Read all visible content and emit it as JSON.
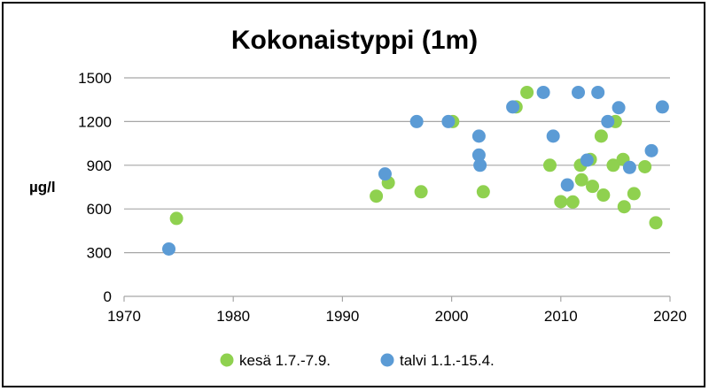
{
  "chart_data": {
    "type": "scatter",
    "title": "Kokonaistyppi (1m)",
    "ylabel": "µg/l",
    "xlabel": "",
    "xlim": [
      1970,
      2020
    ],
    "ylim": [
      0,
      1500
    ],
    "xticks": [
      1970,
      1980,
      1990,
      2000,
      2010,
      2020
    ],
    "yticks": [
      0,
      300,
      600,
      900,
      1200,
      1500
    ],
    "grid": "horizontal",
    "legend_position": "bottom",
    "series": [
      {
        "name": "kesä 1.7.-7.9.",
        "color": "#8fd14f",
        "points": [
          [
            1974.8,
            535
          ],
          [
            1993.1,
            688
          ],
          [
            1994.2,
            780
          ],
          [
            1997.2,
            718
          ],
          [
            2000.1,
            1200
          ],
          [
            2002.9,
            718
          ],
          [
            2005.9,
            1300
          ],
          [
            2006.9,
            1400
          ],
          [
            2009.0,
            900
          ],
          [
            2010.0,
            650
          ],
          [
            2011.1,
            648
          ],
          [
            2011.8,
            900
          ],
          [
            2011.9,
            800
          ],
          [
            2012.7,
            940
          ],
          [
            2012.9,
            755
          ],
          [
            2013.7,
            1100
          ],
          [
            2013.9,
            695
          ],
          [
            2014.8,
            900
          ],
          [
            2015.0,
            1200
          ],
          [
            2015.7,
            940
          ],
          [
            2015.8,
            615
          ],
          [
            2016.7,
            705
          ],
          [
            2017.7,
            890
          ],
          [
            2018.7,
            505
          ]
        ]
      },
      {
        "name": "talvi 1.1.-15.4.",
        "color": "#5b9bd5",
        "points": [
          [
            1974.1,
            325
          ],
          [
            1993.9,
            840
          ],
          [
            1996.8,
            1200
          ],
          [
            1999.7,
            1200
          ],
          [
            2002.5,
            1100
          ],
          [
            2002.5,
            970
          ],
          [
            2002.6,
            900
          ],
          [
            2005.6,
            1300
          ],
          [
            2008.4,
            1400
          ],
          [
            2009.3,
            1100
          ],
          [
            2010.6,
            765
          ],
          [
            2011.6,
            1400
          ],
          [
            2012.4,
            935
          ],
          [
            2013.4,
            1400
          ],
          [
            2014.3,
            1200
          ],
          [
            2015.3,
            1295
          ],
          [
            2016.3,
            885
          ],
          [
            2018.3,
            1000
          ],
          [
            2019.3,
            1300
          ]
        ]
      }
    ]
  }
}
